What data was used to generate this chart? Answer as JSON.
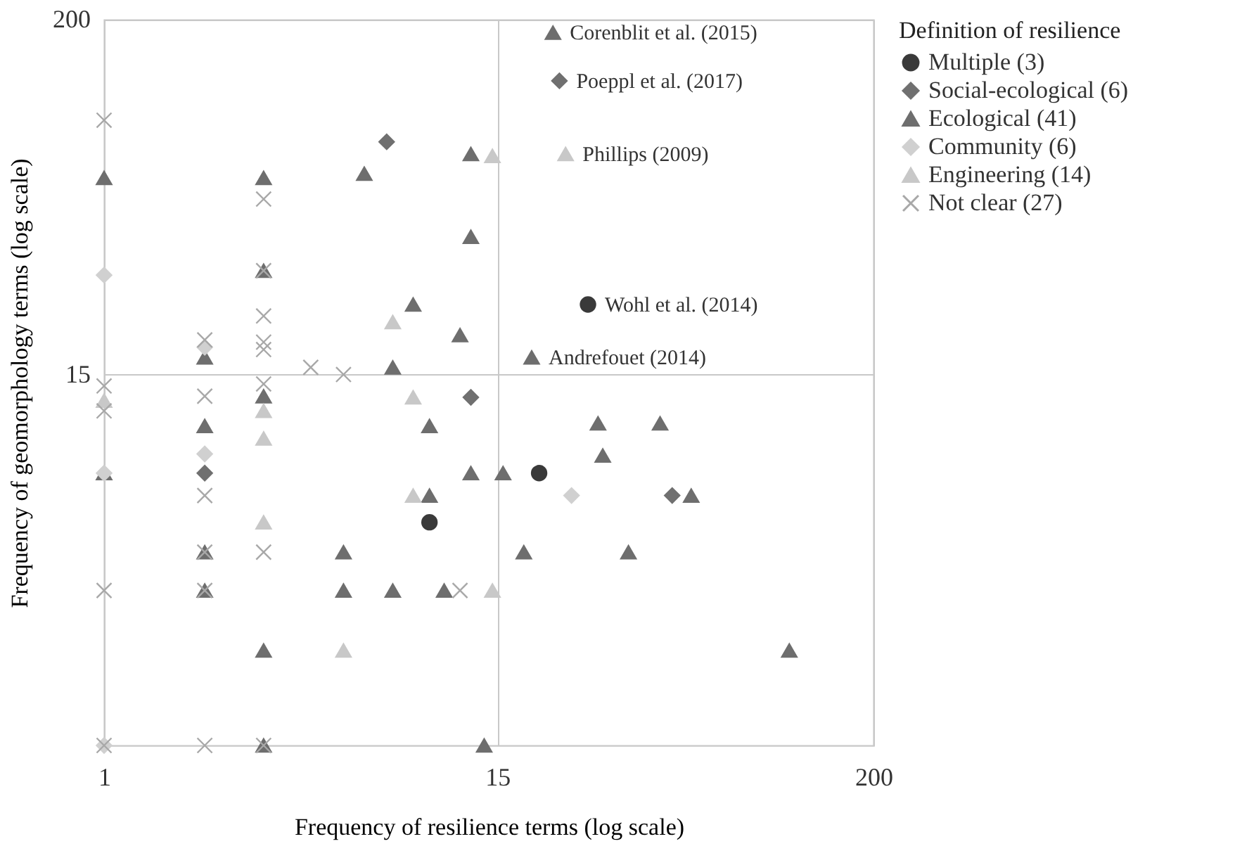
{
  "chart_data": {
    "type": "scatter",
    "xlabel": "Frequency of resilience terms (log scale)",
    "ylabel": "Frequency of geomorphology terms (log scale)",
    "legend_title": "Definition of resilience",
    "log": "xy",
    "xlim": [
      1,
      200
    ],
    "ylim": [
      1,
      200
    ],
    "xticks": [
      1,
      15,
      200
    ],
    "yticks": [
      15,
      200
    ],
    "grid": true,
    "legend": "right",
    "series": [
      {
        "name": "Multiple (3)",
        "color": "#3a3a3a",
        "marker": "circle",
        "x": [
          9.4,
          20,
          28
        ],
        "values": [
          5.1,
          7.3,
          25
        ]
      },
      {
        "name": "Social-ecological (6)",
        "color": "#707070",
        "marker": "diamond",
        "x": [
          7,
          12.5,
          23,
          2,
          50
        ],
        "values": [
          82,
          12.7,
          128,
          7.3,
          6.2
        ]
      },
      {
        "name": "Ecological (41)",
        "color": "#6e6e6e",
        "marker": "triangle",
        "x": [
          1,
          3,
          6,
          12.5,
          3,
          12.5,
          8.4,
          11.6,
          2,
          7.3,
          3,
          2,
          9.4,
          1,
          12.5,
          15.6,
          9.4,
          2,
          5.2,
          2,
          5.2,
          7.3,
          10.4,
          3,
          3,
          13.7,
          22,
          19,
          30,
          46,
          31,
          57,
          18,
          37,
          112
        ],
        "values": [
          63,
          63,
          65,
          75,
          32,
          41,
          25,
          20,
          17,
          15.8,
          12.8,
          10.3,
          10.3,
          7.3,
          7.3,
          7.3,
          6.2,
          4.1,
          4.1,
          3.1,
          3.1,
          3.1,
          3.1,
          2,
          1,
          1,
          182,
          17,
          10.5,
          10.5,
          8.3,
          6.2,
          4.1,
          4.1,
          2
        ]
      },
      {
        "name": "Community (6)",
        "color": "#d0d0d0",
        "marker": "diamond",
        "x": [
          1,
          2,
          2,
          1,
          25,
          1
        ],
        "values": [
          31,
          18.3,
          8.4,
          7.3,
          6.2,
          1
        ]
      },
      {
        "name": "Engineering (14)",
        "color": "#c8c8c8",
        "marker": "triangle",
        "x": [
          14.5,
          7.3,
          8.4,
          1,
          3,
          3,
          3,
          8.4,
          14.5,
          5.2,
          24
        ],
        "values": [
          74,
          22,
          12.7,
          12.4,
          11.5,
          9.4,
          5.1,
          6.2,
          3.1,
          2,
          75
        ]
      },
      {
        "name": "Not clear (27)",
        "color": "#a8a8a8",
        "marker": "cross",
        "x": [
          1,
          3,
          3,
          3,
          2,
          3,
          3,
          4.15,
          5.2,
          1,
          2,
          3,
          1,
          2,
          2,
          3,
          1,
          2,
          11.6,
          1,
          2,
          3
        ],
        "values": [
          96,
          54,
          32,
          23,
          19.3,
          19,
          18,
          15.8,
          15,
          13.8,
          12.8,
          14,
          11.5,
          6.2,
          4.1,
          4.1,
          3.1,
          3.1,
          3.1,
          1,
          1,
          1
        ]
      }
    ],
    "annotations": [
      {
        "text": "Corenblit et al. (2015)",
        "x": 22,
        "y": 182
      },
      {
        "text": "Poeppl et al. (2017)",
        "x": 23,
        "y": 128
      },
      {
        "text": "Phillips (2009)",
        "x": 24,
        "y": 75
      },
      {
        "text": "Wohl et al. (2014)",
        "x": 28,
        "y": 25
      },
      {
        "text": "Andrefouet (2014)",
        "x": 19,
        "y": 17
      }
    ]
  }
}
